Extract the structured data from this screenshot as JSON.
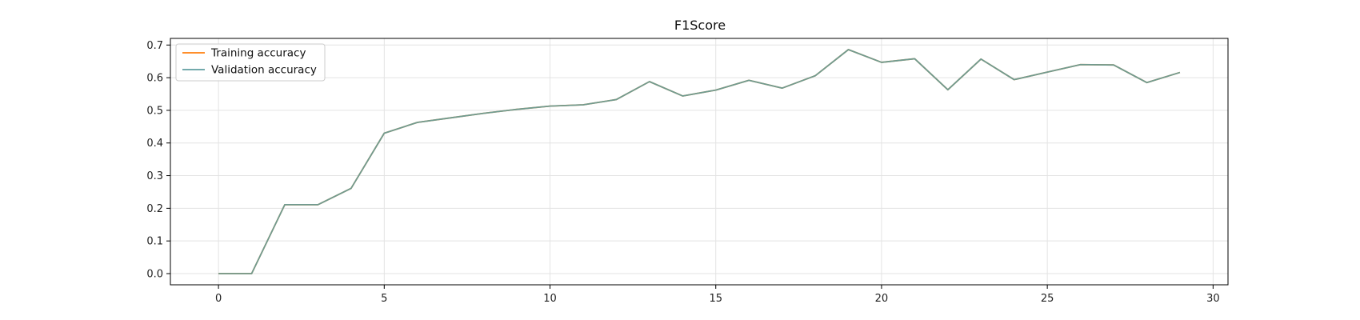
{
  "chart_data": {
    "type": "line",
    "title": "F1Score",
    "xlabel": "",
    "ylabel": "",
    "xlim": [
      -1.45,
      30.45
    ],
    "ylim": [
      -0.0343,
      0.7203
    ],
    "xticks": [
      0,
      5,
      10,
      15,
      20,
      25,
      30
    ],
    "yticks": [
      0.0,
      0.1,
      0.2,
      0.3,
      0.4,
      0.5,
      0.6,
      0.7
    ],
    "ytick_labels": [
      "0.0",
      "0.1",
      "0.2",
      "0.3",
      "0.4",
      "0.5",
      "0.6",
      "0.7"
    ],
    "grid": true,
    "legend_position": "top-left",
    "x": [
      0,
      1,
      2,
      3,
      4,
      5,
      6,
      7,
      8,
      9,
      10,
      11,
      12,
      13,
      14,
      15,
      16,
      17,
      18,
      19,
      20,
      21,
      22,
      23,
      24,
      25,
      26,
      27,
      28,
      29
    ],
    "series": [
      {
        "name": "Training accuracy",
        "color": "#ff7f0e",
        "values": [
          0.0,
          0.0,
          0.211,
          0.211,
          0.261,
          0.43,
          0.463,
          0.477,
          0.491,
          0.503,
          0.513,
          0.517,
          0.533,
          0.588,
          0.544,
          0.562,
          0.592,
          0.568,
          0.606,
          0.686,
          0.647,
          0.658,
          0.563,
          0.657,
          0.594,
          0.617,
          0.64,
          0.639,
          0.585,
          0.616
        ]
      },
      {
        "name": "Validation accuracy",
        "color": "#5f9ea0",
        "values": [
          0.0,
          0.0,
          0.211,
          0.211,
          0.261,
          0.43,
          0.463,
          0.477,
          0.491,
          0.503,
          0.513,
          0.517,
          0.533,
          0.588,
          0.544,
          0.562,
          0.592,
          0.568,
          0.606,
          0.686,
          0.647,
          0.658,
          0.563,
          0.657,
          0.594,
          0.617,
          0.64,
          0.639,
          0.585,
          0.616
        ]
      }
    ]
  }
}
